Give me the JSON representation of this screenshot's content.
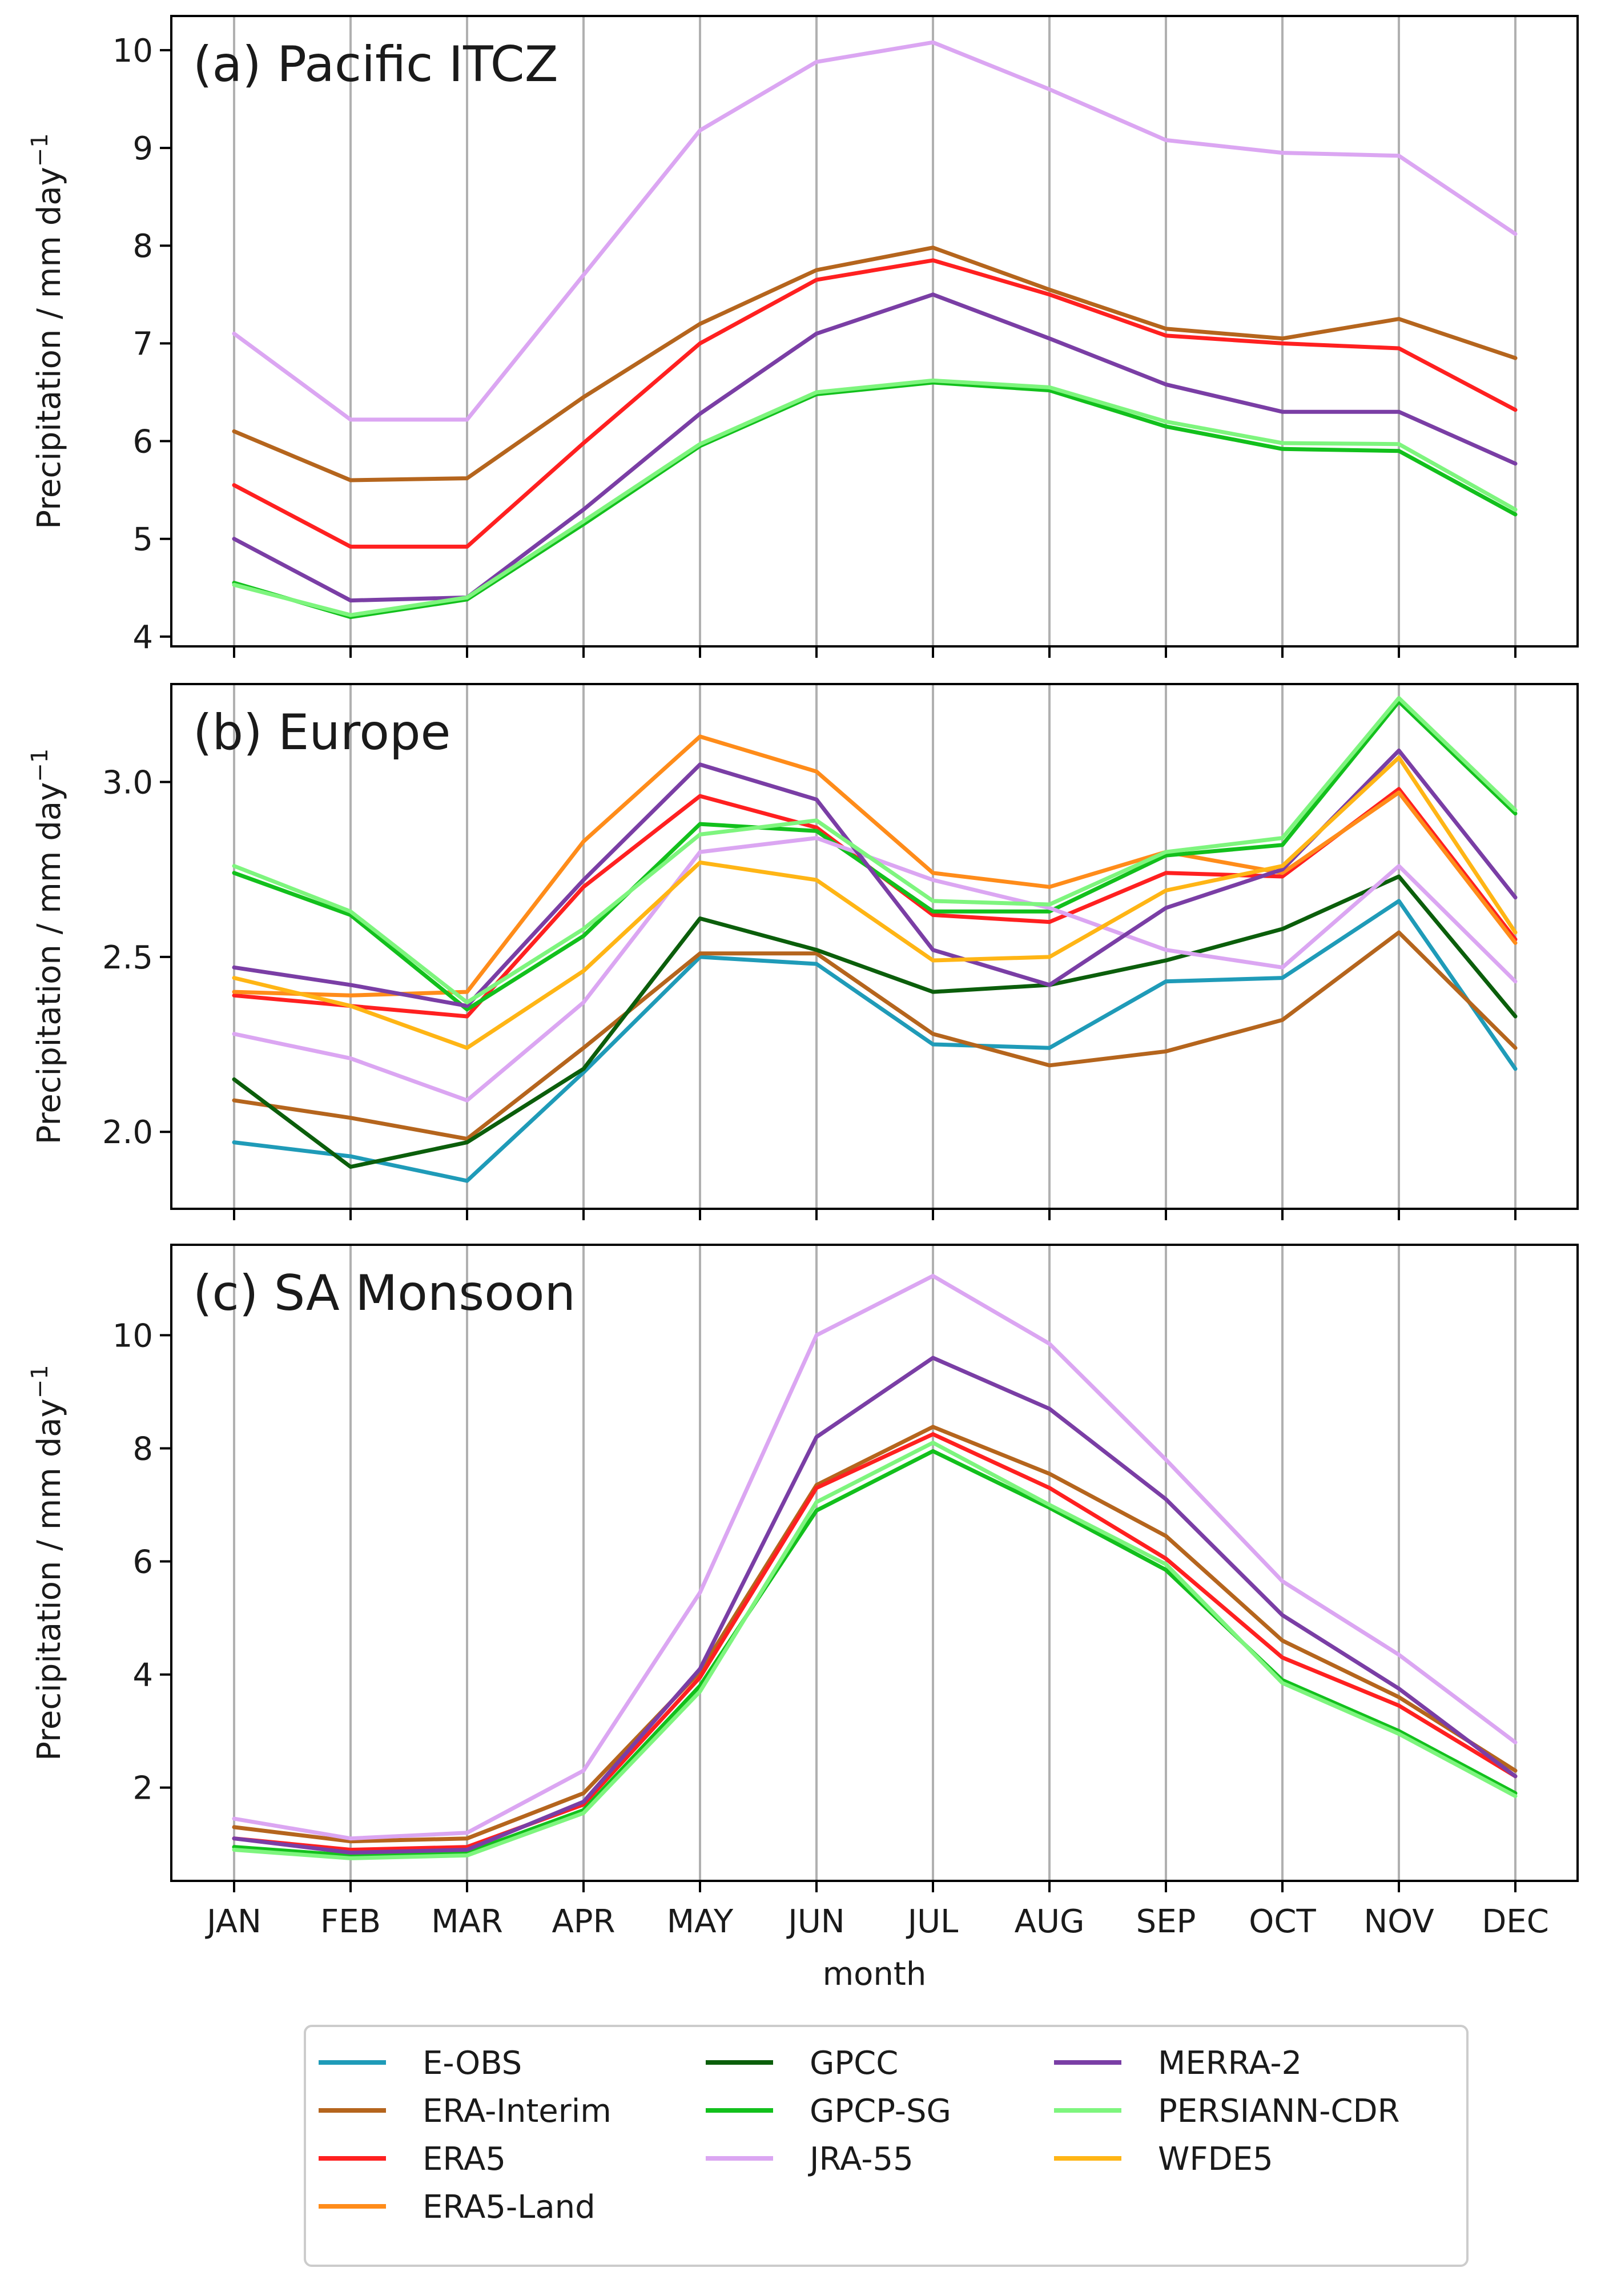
{
  "chart_data": [
    {
      "type": "line",
      "title": "(a) Pacific ITCZ",
      "xlabel": "",
      "ylabel": "Precipitation / mm day",
      "ylabel_superscript": "−1",
      "ylim": [
        3.9,
        10.35
      ],
      "yticks": [
        4,
        5,
        6,
        7,
        8,
        9,
        10
      ],
      "ytick_labels": [
        "4",
        "5",
        "6",
        "7",
        "8",
        "9",
        "10"
      ],
      "categories": [
        "JAN",
        "FEB",
        "MAR",
        "APR",
        "MAY",
        "JUN",
        "JUL",
        "AUG",
        "SEP",
        "OCT",
        "NOV",
        "DEC"
      ],
      "grid": "vertical",
      "series": [
        {
          "name": "ERA-Interim",
          "values": [
            6.1,
            5.6,
            5.62,
            6.45,
            7.2,
            7.75,
            7.98,
            7.55,
            7.15,
            7.05,
            7.25,
            6.85
          ]
        },
        {
          "name": "ERA5",
          "values": [
            5.55,
            4.92,
            4.92,
            5.98,
            7.0,
            7.65,
            7.85,
            7.5,
            7.08,
            7.0,
            6.95,
            6.32
          ]
        },
        {
          "name": "GPCP-SG",
          "values": [
            4.55,
            4.2,
            4.38,
            5.15,
            5.95,
            6.48,
            6.6,
            6.52,
            6.15,
            5.92,
            5.9,
            5.25
          ]
        },
        {
          "name": "JRA-55",
          "values": [
            7.1,
            6.22,
            6.22,
            7.7,
            9.18,
            9.88,
            10.08,
            9.6,
            9.08,
            8.95,
            8.92,
            8.12
          ]
        },
        {
          "name": "MERRA-2",
          "values": [
            5.0,
            4.37,
            4.4,
            5.3,
            6.28,
            7.1,
            7.5,
            7.05,
            6.58,
            6.3,
            6.3,
            5.77
          ]
        },
        {
          "name": "PERSIANN-CDR",
          "values": [
            4.53,
            4.22,
            4.4,
            5.18,
            5.97,
            6.5,
            6.62,
            6.55,
            6.2,
            5.98,
            5.97,
            5.3
          ]
        }
      ]
    },
    {
      "type": "line",
      "title": "(b) Europe",
      "xlabel": "",
      "ylabel": "Precipitation / mm day",
      "ylabel_superscript": "−1",
      "ylim": [
        1.78,
        3.28
      ],
      "yticks": [
        2.0,
        2.5,
        3.0
      ],
      "ytick_labels": [
        "2.0",
        "2.5",
        "3.0"
      ],
      "categories": [
        "JAN",
        "FEB",
        "MAR",
        "APR",
        "MAY",
        "JUN",
        "JUL",
        "AUG",
        "SEP",
        "OCT",
        "NOV",
        "DEC"
      ],
      "grid": "vertical",
      "series": [
        {
          "name": "E-OBS",
          "values": [
            1.97,
            1.93,
            1.86,
            2.17,
            2.5,
            2.48,
            2.25,
            2.24,
            2.43,
            2.44,
            2.66,
            2.18
          ]
        },
        {
          "name": "ERA-Interim",
          "values": [
            2.09,
            2.04,
            1.98,
            2.24,
            2.51,
            2.51,
            2.28,
            2.19,
            2.23,
            2.32,
            2.57,
            2.24
          ]
        },
        {
          "name": "ERA5",
          "values": [
            2.39,
            2.36,
            2.33,
            2.7,
            2.96,
            2.87,
            2.62,
            2.6,
            2.74,
            2.73,
            2.98,
            2.55
          ]
        },
        {
          "name": "ERA5-Land",
          "values": [
            2.4,
            2.39,
            2.4,
            2.83,
            3.13,
            3.03,
            2.74,
            2.7,
            2.8,
            2.74,
            2.97,
            2.54
          ]
        },
        {
          "name": "GPCC",
          "values": [
            2.15,
            1.9,
            1.97,
            2.18,
            2.61,
            2.52,
            2.4,
            2.42,
            2.49,
            2.58,
            2.73,
            2.33
          ]
        },
        {
          "name": "GPCP-SG",
          "values": [
            2.74,
            2.62,
            2.35,
            2.56,
            2.88,
            2.86,
            2.63,
            2.63,
            2.79,
            2.82,
            3.23,
            2.91
          ]
        },
        {
          "name": "JRA-55",
          "values": [
            2.28,
            2.21,
            2.09,
            2.37,
            2.8,
            2.84,
            2.72,
            2.64,
            2.52,
            2.47,
            2.76,
            2.43
          ]
        },
        {
          "name": "MERRA-2",
          "values": [
            2.47,
            2.42,
            2.36,
            2.72,
            3.05,
            2.95,
            2.52,
            2.42,
            2.64,
            2.75,
            3.09,
            2.67
          ]
        },
        {
          "name": "PERSIANN-CDR",
          "values": [
            2.76,
            2.63,
            2.37,
            2.58,
            2.85,
            2.89,
            2.66,
            2.65,
            2.8,
            2.84,
            3.24,
            2.92
          ]
        },
        {
          "name": "WFDE5",
          "values": [
            2.44,
            2.36,
            2.24,
            2.46,
            2.77,
            2.72,
            2.49,
            2.5,
            2.69,
            2.76,
            3.07,
            2.57
          ]
        }
      ]
    },
    {
      "type": "line",
      "title": "(c) SA Monsoon",
      "xlabel": "month",
      "ylabel": "Precipitation / mm day",
      "ylabel_superscript": "−1",
      "ylim": [
        0.35,
        11.6
      ],
      "yticks": [
        2,
        4,
        6,
        8,
        10
      ],
      "ytick_labels": [
        "2",
        "4",
        "6",
        "8",
        "10"
      ],
      "categories": [
        "JAN",
        "FEB",
        "MAR",
        "APR",
        "MAY",
        "JUN",
        "JUL",
        "AUG",
        "SEP",
        "OCT",
        "NOV",
        "DEC"
      ],
      "grid": "vertical",
      "series": [
        {
          "name": "ERA-Interim",
          "values": [
            1.3,
            1.05,
            1.1,
            1.9,
            4.05,
            7.35,
            8.38,
            7.55,
            6.45,
            4.6,
            3.6,
            2.3
          ]
        },
        {
          "name": "ERA5",
          "values": [
            1.1,
            0.9,
            0.95,
            1.7,
            3.95,
            7.3,
            8.25,
            7.3,
            6.05,
            4.3,
            3.45,
            2.2
          ]
        },
        {
          "name": "GPCP-SG",
          "values": [
            0.95,
            0.8,
            0.85,
            1.6,
            3.8,
            6.9,
            7.95,
            6.95,
            5.85,
            3.9,
            3.0,
            1.9
          ]
        },
        {
          "name": "JRA-55",
          "values": [
            1.45,
            1.1,
            1.2,
            2.3,
            5.45,
            10.0,
            11.05,
            9.85,
            7.8,
            5.65,
            4.35,
            2.8
          ]
        },
        {
          "name": "MERRA-2",
          "values": [
            1.1,
            0.85,
            0.9,
            1.75,
            4.1,
            8.2,
            9.6,
            8.7,
            7.1,
            5.05,
            3.75,
            2.2
          ]
        },
        {
          "name": "PERSIANN-CDR",
          "values": [
            0.9,
            0.75,
            0.8,
            1.55,
            3.7,
            7.05,
            8.1,
            7.0,
            5.95,
            3.85,
            2.95,
            1.85
          ]
        }
      ]
    }
  ],
  "colors": {
    "E-OBS": "#1f9bb8",
    "ERA-Interim": "#b5651d",
    "ERA5": "#ff2020",
    "ERA5-Land": "#ff8c1a",
    "GPCC": "#0b5e0b",
    "GPCP-SG": "#12c01c",
    "JRA-55": "#dba6f2",
    "MERRA-2": "#7a3ea5",
    "PERSIANN-CDR": "#7ef57e",
    "WFDE5": "#ffb515"
  },
  "legend": {
    "entries": [
      "E-OBS",
      "ERA-Interim",
      "ERA5",
      "ERA5-Land",
      "GPCC",
      "GPCP-SG",
      "JRA-55",
      "MERRA-2",
      "PERSIANN-CDR",
      "WFDE5"
    ],
    "placement": "bottom-center"
  }
}
